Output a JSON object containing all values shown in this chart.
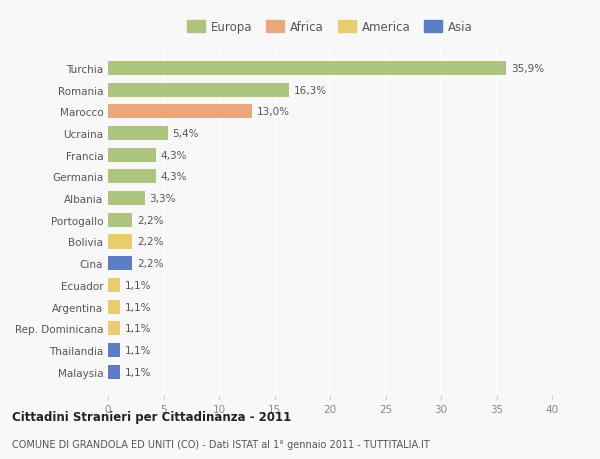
{
  "categories": [
    "Turchia",
    "Romania",
    "Marocco",
    "Ucraina",
    "Francia",
    "Germania",
    "Albania",
    "Portogallo",
    "Bolivia",
    "Cina",
    "Ecuador",
    "Argentina",
    "Rep. Dominicana",
    "Thailandia",
    "Malaysia"
  ],
  "values": [
    35.9,
    16.3,
    13.0,
    5.4,
    4.3,
    4.3,
    3.3,
    2.2,
    2.2,
    2.2,
    1.1,
    1.1,
    1.1,
    1.1,
    1.1
  ],
  "labels": [
    "35,9%",
    "16,3%",
    "13,0%",
    "5,4%",
    "4,3%",
    "4,3%",
    "3,3%",
    "2,2%",
    "2,2%",
    "2,2%",
    "1,1%",
    "1,1%",
    "1,1%",
    "1,1%",
    "1,1%"
  ],
  "colors": [
    "#adc47e",
    "#adc47e",
    "#e8a87c",
    "#adc47e",
    "#adc47e",
    "#adc47e",
    "#adc47e",
    "#adc47e",
    "#e8cc6e",
    "#5b7ec5",
    "#e8cc6e",
    "#e8cc6e",
    "#e8cc6e",
    "#5b7ec5",
    "#5b7ec5"
  ],
  "legend_labels": [
    "Europa",
    "Africa",
    "America",
    "Asia"
  ],
  "legend_colors": [
    "#adc47e",
    "#e8a87c",
    "#e8cc6e",
    "#5b7ec5"
  ],
  "title": "Cittadini Stranieri per Cittadinanza - 2011",
  "subtitle": "COMUNE DI GRANDOLA ED UNITI (CO) - Dati ISTAT al 1° gennaio 2011 - TUTTITALIA.IT",
  "xlim": [
    0,
    40
  ],
  "xticks": [
    0,
    5,
    10,
    15,
    20,
    25,
    30,
    35,
    40
  ],
  "bg_color": "#f8f8f8",
  "grid_color": "#ffffff"
}
